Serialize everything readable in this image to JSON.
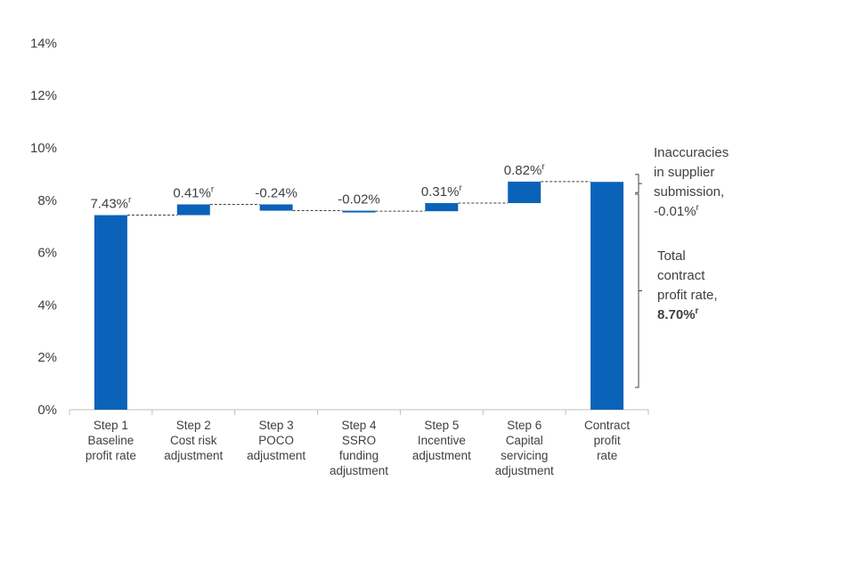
{
  "chart_data": {
    "type": "bar",
    "subtype": "waterfall",
    "title": "",
    "xlabel": "",
    "ylabel": "",
    "ylim": [
      0,
      14
    ],
    "yticks": [
      0,
      2,
      4,
      6,
      8,
      10,
      12,
      14
    ],
    "ytick_suffix": "%",
    "grid": false,
    "color": "#0b62b9",
    "categories": [
      [
        "Step 1",
        "Baseline",
        "profit rate"
      ],
      [
        "Step 2",
        "Cost risk",
        "adjustment"
      ],
      [
        "Step 3",
        "POCO",
        "adjustment"
      ],
      [
        "Step 4",
        "SSRO",
        "funding",
        "adjustment"
      ],
      [
        "Step 5",
        "Incentive",
        "adjustment"
      ],
      [
        "Step 6",
        "Capital",
        "servicing",
        "adjustment"
      ],
      [
        "Contract",
        "profit",
        "rate"
      ]
    ],
    "steps": [
      {
        "kind": "total",
        "value": 7.43,
        "label": "7.43%",
        "revised": true
      },
      {
        "kind": "delta",
        "value": 0.41,
        "label": "0.41%",
        "revised": true
      },
      {
        "kind": "delta",
        "value": -0.24,
        "label": "-0.24%",
        "revised": false
      },
      {
        "kind": "delta",
        "value": -0.02,
        "label": "-0.02%",
        "revised": false
      },
      {
        "kind": "delta",
        "value": 0.31,
        "label": "0.31%",
        "revised": true
      },
      {
        "kind": "delta",
        "value": 0.82,
        "label": "0.82%",
        "revised": true
      },
      {
        "kind": "total",
        "value": 8.7,
        "label": "",
        "revised": false
      }
    ],
    "revised_mark": "r",
    "annotations": {
      "inaccuracies": {
        "lines": [
          "Inaccuracies",
          "in supplier",
          "submission,",
          "-0.01%"
        ],
        "value": -0.01,
        "revised": true
      },
      "total": {
        "lines": [
          "Total",
          "contract",
          "profit rate,"
        ],
        "value_text": "8.70%",
        "value": 8.7,
        "revised": true
      }
    }
  }
}
